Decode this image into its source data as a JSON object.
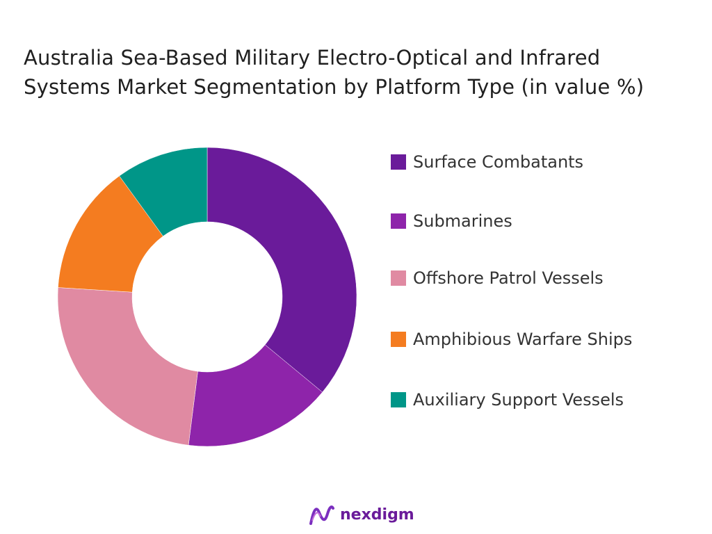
{
  "chart_data": {
    "type": "pie",
    "donut": true,
    "title": "Australia Sea-Based Military Electro-Optical and Infrared Systems Market Segmentation by Platform Type (in value %)",
    "categories": [
      "Surface Combatants",
      "Submarines",
      "Offshore Patrol Vessels",
      "Amphibious Warfare Ships",
      "Auxiliary Support Vessels"
    ],
    "values": [
      36,
      16,
      24,
      14,
      10
    ],
    "colors": [
      "#6a1b9a",
      "#8e24aa",
      "#e08aa2",
      "#f47c20",
      "#009688"
    ],
    "legend_position": "right"
  },
  "branding": {
    "logo_text": "nexdigm"
  }
}
